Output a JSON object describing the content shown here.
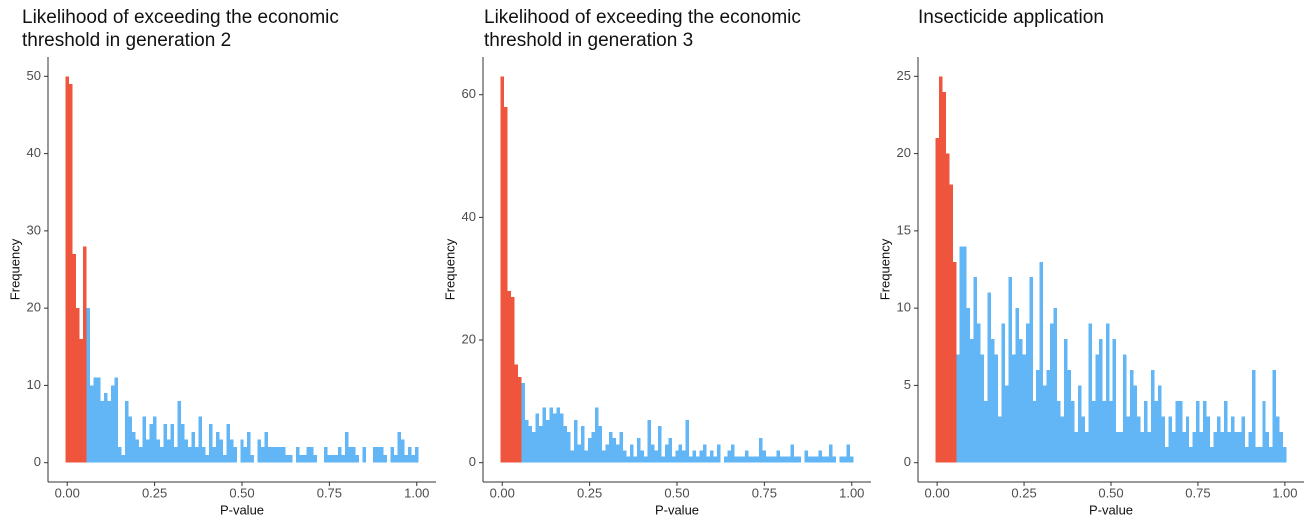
{
  "chart_data": [
    {
      "type": "histogram",
      "title": "Likelihood of exceeding the economic threshold in generation 2",
      "x_label": "P-value",
      "y_label": "Frequency",
      "bins": [
        -0.005,
        0.005,
        0.015,
        0.025,
        0.035,
        0.045,
        0.055,
        0.065,
        0.075,
        0.085,
        0.095,
        0.105,
        0.115,
        0.125,
        0.135,
        0.145,
        0.155,
        0.165,
        0.175,
        0.185,
        0.195,
        0.205,
        0.215,
        0.225,
        0.235,
        0.245,
        0.255,
        0.265,
        0.275,
        0.285,
        0.295,
        0.305,
        0.315,
        0.325,
        0.335,
        0.345,
        0.355,
        0.365,
        0.375,
        0.385,
        0.395,
        0.405,
        0.415,
        0.425,
        0.435,
        0.445,
        0.455,
        0.465,
        0.475,
        0.485,
        0.495,
        0.505,
        0.515,
        0.525,
        0.535,
        0.545,
        0.555,
        0.565,
        0.575,
        0.585,
        0.595,
        0.605,
        0.615,
        0.625,
        0.635,
        0.645,
        0.655,
        0.665,
        0.675,
        0.685,
        0.695,
        0.705,
        0.715,
        0.725,
        0.735,
        0.745,
        0.755,
        0.765,
        0.775,
        0.785,
        0.795,
        0.805,
        0.815,
        0.825,
        0.835,
        0.845,
        0.855,
        0.865,
        0.875,
        0.885,
        0.895,
        0.905,
        0.915,
        0.925,
        0.935,
        0.945,
        0.955,
        0.965,
        0.975,
        0.985,
        0.995,
        1.005
      ],
      "counts": [
        50,
        49,
        27,
        20,
        16,
        28,
        20,
        10,
        11,
        11,
        8,
        9,
        8,
        10,
        11,
        2,
        1,
        8,
        6,
        4,
        3,
        2,
        6,
        3,
        5,
        6,
        3,
        2,
        5,
        3,
        5,
        2,
        8,
        5,
        3,
        2,
        4,
        2,
        6,
        2,
        1,
        5,
        2,
        4,
        3,
        1,
        5,
        3,
        2,
        0,
        3,
        2,
        4,
        1,
        0,
        3,
        2,
        4,
        2,
        2,
        2,
        2,
        2,
        1,
        1,
        0,
        2,
        1,
        1,
        2,
        2,
        1,
        0,
        0,
        2,
        1,
        1,
        1,
        2,
        1,
        4,
        2,
        2,
        1,
        0,
        2,
        0,
        0,
        2,
        2,
        2,
        1,
        0,
        2,
        1,
        4,
        3,
        1,
        2,
        1,
        2
      ],
      "colors": [
        "#ef553c",
        "#ef553c",
        "#ef553c",
        "#ef553c",
        "#ef553c",
        "#ef553c",
        "#62b6f6",
        "#62b6f6",
        "#62b6f6",
        "#62b6f6",
        "#62b6f6",
        "#62b6f6",
        "#62b6f6",
        "#62b6f6",
        "#62b6f6",
        "#62b6f6",
        "#62b6f6",
        "#62b6f6",
        "#62b6f6",
        "#62b6f6",
        "#62b6f6",
        "#62b6f6",
        "#62b6f6",
        "#62b6f6",
        "#62b6f6",
        "#62b6f6",
        "#62b6f6",
        "#62b6f6",
        "#62b6f6",
        "#62b6f6",
        "#62b6f6",
        "#62b6f6",
        "#62b6f6",
        "#62b6f6",
        "#62b6f6",
        "#62b6f6",
        "#62b6f6",
        "#62b6f6",
        "#62b6f6",
        "#62b6f6",
        "#62b6f6",
        "#62b6f6",
        "#62b6f6",
        "#62b6f6",
        "#62b6f6",
        "#62b6f6",
        "#62b6f6",
        "#62b6f6",
        "#62b6f6",
        "#62b6f6",
        "#62b6f6",
        "#62b6f6",
        "#62b6f6",
        "#62b6f6",
        "#62b6f6",
        "#62b6f6",
        "#62b6f6",
        "#62b6f6",
        "#62b6f6",
        "#62b6f6",
        "#62b6f6",
        "#62b6f6",
        "#62b6f6",
        "#62b6f6",
        "#62b6f6",
        "#62b6f6",
        "#62b6f6",
        "#62b6f6",
        "#62b6f6",
        "#62b6f6",
        "#62b6f6",
        "#62b6f6",
        "#62b6f6",
        "#62b6f6",
        "#62b6f6",
        "#62b6f6",
        "#62b6f6",
        "#62b6f6",
        "#62b6f6",
        "#62b6f6",
        "#62b6f6",
        "#62b6f6",
        "#62b6f6",
        "#62b6f6",
        "#62b6f6",
        "#62b6f6",
        "#62b6f6",
        "#62b6f6",
        "#62b6f6",
        "#62b6f6",
        "#62b6f6",
        "#62b6f6",
        "#62b6f6",
        "#62b6f6",
        "#62b6f6",
        "#62b6f6",
        "#62b6f6",
        "#62b6f6",
        "#62b6f6",
        "#62b6f6",
        "#62b6f6"
      ],
      "xlim": [
        -0.055,
        1.055
      ],
      "ylim": [
        -2.5,
        52.5
      ],
      "xticks": [
        {
          "value": 0,
          "label": "0.00"
        },
        {
          "value": 0.25,
          "label": "0.25"
        },
        {
          "value": 0.5,
          "label": "0.50"
        },
        {
          "value": 0.75,
          "label": "0.75"
        },
        {
          "value": 1,
          "label": "1.00"
        }
      ],
      "yticks": [
        0,
        10,
        20,
        30,
        40,
        50
      ]
    },
    {
      "type": "histogram",
      "title": "Likelihood of exceeding the economic threshold in generation 3",
      "x_label": "P-value",
      "y_label": "Frequency",
      "bins": [
        -0.005,
        0.005,
        0.015,
        0.025,
        0.035,
        0.045,
        0.055,
        0.065,
        0.075,
        0.085,
        0.095,
        0.105,
        0.115,
        0.125,
        0.135,
        0.145,
        0.155,
        0.165,
        0.175,
        0.185,
        0.195,
        0.205,
        0.215,
        0.225,
        0.235,
        0.245,
        0.255,
        0.265,
        0.275,
        0.285,
        0.295,
        0.305,
        0.315,
        0.325,
        0.335,
        0.345,
        0.355,
        0.365,
        0.375,
        0.385,
        0.395,
        0.405,
        0.415,
        0.425,
        0.435,
        0.445,
        0.455,
        0.465,
        0.475,
        0.485,
        0.495,
        0.505,
        0.515,
        0.525,
        0.535,
        0.545,
        0.555,
        0.565,
        0.575,
        0.585,
        0.595,
        0.605,
        0.615,
        0.625,
        0.635,
        0.645,
        0.655,
        0.665,
        0.675,
        0.685,
        0.695,
        0.705,
        0.715,
        0.725,
        0.735,
        0.745,
        0.755,
        0.765,
        0.775,
        0.785,
        0.795,
        0.805,
        0.815,
        0.825,
        0.835,
        0.845,
        0.855,
        0.865,
        0.875,
        0.885,
        0.895,
        0.905,
        0.915,
        0.925,
        0.935,
        0.945,
        0.955,
        0.965,
        0.975,
        0.985,
        0.995,
        1.005
      ],
      "counts": [
        63,
        58,
        28,
        27,
        16,
        14,
        13,
        7,
        6,
        5,
        8,
        6,
        9,
        7,
        9,
        8,
        9,
        8,
        6,
        5,
        2,
        7,
        3,
        6,
        2,
        4,
        5,
        9,
        6,
        2,
        3,
        5,
        4,
        3,
        5,
        2,
        1,
        3,
        1,
        4,
        2,
        1,
        7,
        3,
        2,
        6,
        1,
        3,
        4,
        1,
        2,
        3,
        2,
        7,
        1,
        2,
        1,
        2,
        3,
        1,
        2,
        1,
        3,
        0,
        1,
        2,
        3,
        1,
        1,
        1,
        2,
        1,
        1,
        1,
        4,
        2,
        1,
        1,
        1,
        2,
        1,
        1,
        1,
        3,
        1,
        1,
        0,
        2,
        1,
        1,
        1,
        2,
        1,
        1,
        3,
        1,
        0,
        1,
        1,
        3,
        1
      ],
      "colors": [
        "#ef553c",
        "#ef553c",
        "#ef553c",
        "#ef553c",
        "#ef553c",
        "#ef553c",
        "#62b6f6",
        "#62b6f6",
        "#62b6f6",
        "#62b6f6",
        "#62b6f6",
        "#62b6f6",
        "#62b6f6",
        "#62b6f6",
        "#62b6f6",
        "#62b6f6",
        "#62b6f6",
        "#62b6f6",
        "#62b6f6",
        "#62b6f6",
        "#62b6f6",
        "#62b6f6",
        "#62b6f6",
        "#62b6f6",
        "#62b6f6",
        "#62b6f6",
        "#62b6f6",
        "#62b6f6",
        "#62b6f6",
        "#62b6f6",
        "#62b6f6",
        "#62b6f6",
        "#62b6f6",
        "#62b6f6",
        "#62b6f6",
        "#62b6f6",
        "#62b6f6",
        "#62b6f6",
        "#62b6f6",
        "#62b6f6",
        "#62b6f6",
        "#62b6f6",
        "#62b6f6",
        "#62b6f6",
        "#62b6f6",
        "#62b6f6",
        "#62b6f6",
        "#62b6f6",
        "#62b6f6",
        "#62b6f6",
        "#62b6f6",
        "#62b6f6",
        "#62b6f6",
        "#62b6f6",
        "#62b6f6",
        "#62b6f6",
        "#62b6f6",
        "#62b6f6",
        "#62b6f6",
        "#62b6f6",
        "#62b6f6",
        "#62b6f6",
        "#62b6f6",
        "#62b6f6",
        "#62b6f6",
        "#62b6f6",
        "#62b6f6",
        "#62b6f6",
        "#62b6f6",
        "#62b6f6",
        "#62b6f6",
        "#62b6f6",
        "#62b6f6",
        "#62b6f6",
        "#62b6f6",
        "#62b6f6",
        "#62b6f6",
        "#62b6f6",
        "#62b6f6",
        "#62b6f6",
        "#62b6f6",
        "#62b6f6",
        "#62b6f6",
        "#62b6f6",
        "#62b6f6",
        "#62b6f6",
        "#62b6f6",
        "#62b6f6",
        "#62b6f6",
        "#62b6f6",
        "#62b6f6",
        "#62b6f6",
        "#62b6f6",
        "#62b6f6",
        "#62b6f6",
        "#62b6f6",
        "#62b6f6",
        "#62b6f6",
        "#62b6f6",
        "#62b6f6",
        "#62b6f6"
      ],
      "xlim": [
        -0.055,
        1.055
      ],
      "ylim": [
        -3.15,
        66.15
      ],
      "xticks": [
        {
          "value": 0,
          "label": "0.00"
        },
        {
          "value": 0.25,
          "label": "0.25"
        },
        {
          "value": 0.5,
          "label": "0.50"
        },
        {
          "value": 0.75,
          "label": "0.75"
        },
        {
          "value": 1,
          "label": "1.00"
        }
      ],
      "yticks": [
        0,
        20,
        40,
        60
      ]
    },
    {
      "type": "histogram",
      "title": "Insecticide application",
      "x_label": "P-value",
      "y_label": "Frequency",
      "bins": [
        -0.005,
        0.005,
        0.015,
        0.025,
        0.035,
        0.045,
        0.055,
        0.065,
        0.075,
        0.085,
        0.095,
        0.105,
        0.115,
        0.125,
        0.135,
        0.145,
        0.155,
        0.165,
        0.175,
        0.185,
        0.195,
        0.205,
        0.215,
        0.225,
        0.235,
        0.245,
        0.255,
        0.265,
        0.275,
        0.285,
        0.295,
        0.305,
        0.315,
        0.325,
        0.335,
        0.345,
        0.355,
        0.365,
        0.375,
        0.385,
        0.395,
        0.405,
        0.415,
        0.425,
        0.435,
        0.445,
        0.455,
        0.465,
        0.475,
        0.485,
        0.495,
        0.505,
        0.515,
        0.525,
        0.535,
        0.545,
        0.555,
        0.565,
        0.575,
        0.585,
        0.595,
        0.605,
        0.615,
        0.625,
        0.635,
        0.645,
        0.655,
        0.665,
        0.675,
        0.685,
        0.695,
        0.705,
        0.715,
        0.725,
        0.735,
        0.745,
        0.755,
        0.765,
        0.775,
        0.785,
        0.795,
        0.805,
        0.815,
        0.825,
        0.835,
        0.845,
        0.855,
        0.865,
        0.875,
        0.885,
        0.895,
        0.905,
        0.915,
        0.925,
        0.935,
        0.945,
        0.955,
        0.965,
        0.975,
        0.985,
        0.995,
        1.005
      ],
      "counts": [
        21,
        25,
        24,
        20,
        18,
        13,
        7,
        14,
        14,
        10,
        8,
        12,
        9,
        7,
        4,
        11,
        8,
        7,
        3,
        9,
        5,
        12,
        7,
        10,
        8,
        7,
        9,
        12,
        4,
        6,
        13,
        5,
        6,
        9,
        10,
        4,
        3,
        8,
        6,
        4,
        2,
        5,
        3,
        2,
        9,
        4,
        7,
        8,
        4,
        9,
        4,
        8,
        2,
        2,
        7,
        3,
        6,
        5,
        3,
        2,
        4,
        2,
        6,
        4,
        5,
        3,
        1,
        3,
        2,
        4,
        4,
        2,
        3,
        1,
        2,
        4,
        2,
        4,
        3,
        1,
        2,
        3,
        2,
        4,
        2,
        3,
        2,
        2,
        3,
        1,
        2,
        6,
        1,
        1,
        4,
        2,
        1,
        6,
        3,
        2,
        1
      ],
      "colors": [
        "#ef553c",
        "#ef553c",
        "#ef553c",
        "#ef553c",
        "#ef553c",
        "#ef553c",
        "#62b6f6",
        "#62b6f6",
        "#62b6f6",
        "#62b6f6",
        "#62b6f6",
        "#62b6f6",
        "#62b6f6",
        "#62b6f6",
        "#62b6f6",
        "#62b6f6",
        "#62b6f6",
        "#62b6f6",
        "#62b6f6",
        "#62b6f6",
        "#62b6f6",
        "#62b6f6",
        "#62b6f6",
        "#62b6f6",
        "#62b6f6",
        "#62b6f6",
        "#62b6f6",
        "#62b6f6",
        "#62b6f6",
        "#62b6f6",
        "#62b6f6",
        "#62b6f6",
        "#62b6f6",
        "#62b6f6",
        "#62b6f6",
        "#62b6f6",
        "#62b6f6",
        "#62b6f6",
        "#62b6f6",
        "#62b6f6",
        "#62b6f6",
        "#62b6f6",
        "#62b6f6",
        "#62b6f6",
        "#62b6f6",
        "#62b6f6",
        "#62b6f6",
        "#62b6f6",
        "#62b6f6",
        "#62b6f6",
        "#62b6f6",
        "#62b6f6",
        "#62b6f6",
        "#62b6f6",
        "#62b6f6",
        "#62b6f6",
        "#62b6f6",
        "#62b6f6",
        "#62b6f6",
        "#62b6f6",
        "#62b6f6",
        "#62b6f6",
        "#62b6f6",
        "#62b6f6",
        "#62b6f6",
        "#62b6f6",
        "#62b6f6",
        "#62b6f6",
        "#62b6f6",
        "#62b6f6",
        "#62b6f6",
        "#62b6f6",
        "#62b6f6",
        "#62b6f6",
        "#62b6f6",
        "#62b6f6",
        "#62b6f6",
        "#62b6f6",
        "#62b6f6",
        "#62b6f6",
        "#62b6f6",
        "#62b6f6",
        "#62b6f6",
        "#62b6f6",
        "#62b6f6",
        "#62b6f6",
        "#62b6f6",
        "#62b6f6",
        "#62b6f6",
        "#62b6f6",
        "#62b6f6",
        "#62b6f6",
        "#62b6f6",
        "#62b6f6",
        "#62b6f6",
        "#62b6f6",
        "#62b6f6",
        "#62b6f6",
        "#62b6f6",
        "#62b6f6",
        "#62b6f6"
      ],
      "xlim": [
        -0.055,
        1.055
      ],
      "ylim": [
        -1.25,
        26.25
      ],
      "xticks": [
        {
          "value": 0,
          "label": "0.00"
        },
        {
          "value": 0.25,
          "label": "0.25"
        },
        {
          "value": 0.5,
          "label": "0.50"
        },
        {
          "value": 0.75,
          "label": "0.75"
        },
        {
          "value": 1,
          "label": "1.00"
        }
      ],
      "yticks": [
        0,
        5,
        10,
        15,
        20,
        25
      ]
    }
  ]
}
